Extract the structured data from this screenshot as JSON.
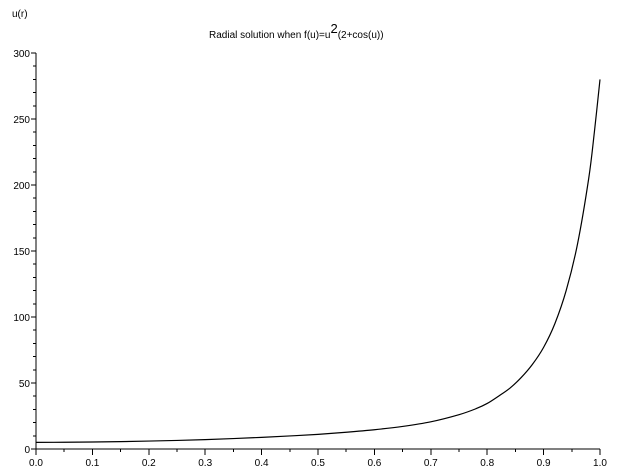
{
  "chart_data": {
    "type": "line",
    "title_main": "Radial solution when f(u)=u",
    "title_sup": "2",
    "title_tail": "(2+cos(u))",
    "ylabel": "u(r)",
    "xlabel": "",
    "xlim": [
      0,
      1
    ],
    "ylim": [
      0,
      300
    ],
    "x_ticks": [
      0.0,
      0.1,
      0.2,
      0.3,
      0.4,
      0.5,
      0.6,
      0.7,
      0.8,
      0.9,
      1.0
    ],
    "x_tick_labels": [
      "0.0",
      "0.1",
      "0.2",
      "0.3",
      "0.4",
      "0.5",
      "0.6",
      "0.7",
      "0.8",
      "0.9",
      "1.0"
    ],
    "y_ticks": [
      0,
      50,
      100,
      150,
      200,
      250,
      300
    ],
    "y_tick_labels": [
      "0",
      "50",
      "100",
      "150",
      "200",
      "250",
      "300"
    ],
    "grid": false,
    "series": [
      {
        "x": [
          0.0,
          0.05,
          0.1,
          0.15,
          0.2,
          0.25,
          0.3,
          0.35,
          0.4,
          0.45,
          0.5,
          0.55,
          0.6,
          0.65,
          0.7,
          0.75,
          0.78,
          0.8,
          0.82,
          0.84,
          0.86,
          0.88,
          0.9,
          0.92,
          0.94,
          0.96,
          0.98,
          0.99,
          1.0
        ],
        "y": [
          5,
          5.1,
          5.3,
          5.6,
          6,
          6.5,
          7.1,
          7.9,
          8.8,
          9.9,
          11.1,
          12.7,
          14.6,
          17.1,
          20.6,
          26,
          30.5,
          34.5,
          40,
          46,
          54,
          64,
          77,
          95,
          120,
          155,
          205,
          240,
          280
        ]
      }
    ]
  }
}
